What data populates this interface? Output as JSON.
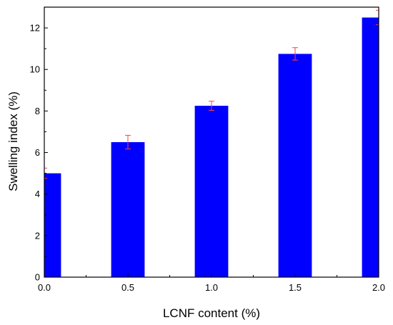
{
  "chart_data": {
    "type": "bar",
    "title": "",
    "xlabel": "LCNF content (%)",
    "ylabel": "Swelling index (%)",
    "x": [
      0.0,
      0.5,
      1.0,
      1.5,
      2.0
    ],
    "values": [
      5.0,
      6.5,
      8.25,
      10.75,
      12.5
    ],
    "errors": [
      0.25,
      0.33,
      0.22,
      0.3,
      0.35
    ],
    "bar_width": 0.2,
    "xlim": [
      0.0,
      2.0
    ],
    "ylim": [
      0,
      13
    ],
    "xticks": [
      0.0,
      0.5,
      1.0,
      1.5,
      2.0
    ],
    "xtick_labels": [
      "0.0",
      "0.5",
      "1.0",
      "1.5",
      "2.0"
    ],
    "yticks": [
      0,
      2,
      4,
      6,
      8,
      10,
      12
    ],
    "ytick_labels": [
      "0",
      "2",
      "4",
      "6",
      "8",
      "10",
      "12"
    ],
    "grid": false,
    "bar_color": "#0000ff",
    "error_color": "#ff4040"
  }
}
